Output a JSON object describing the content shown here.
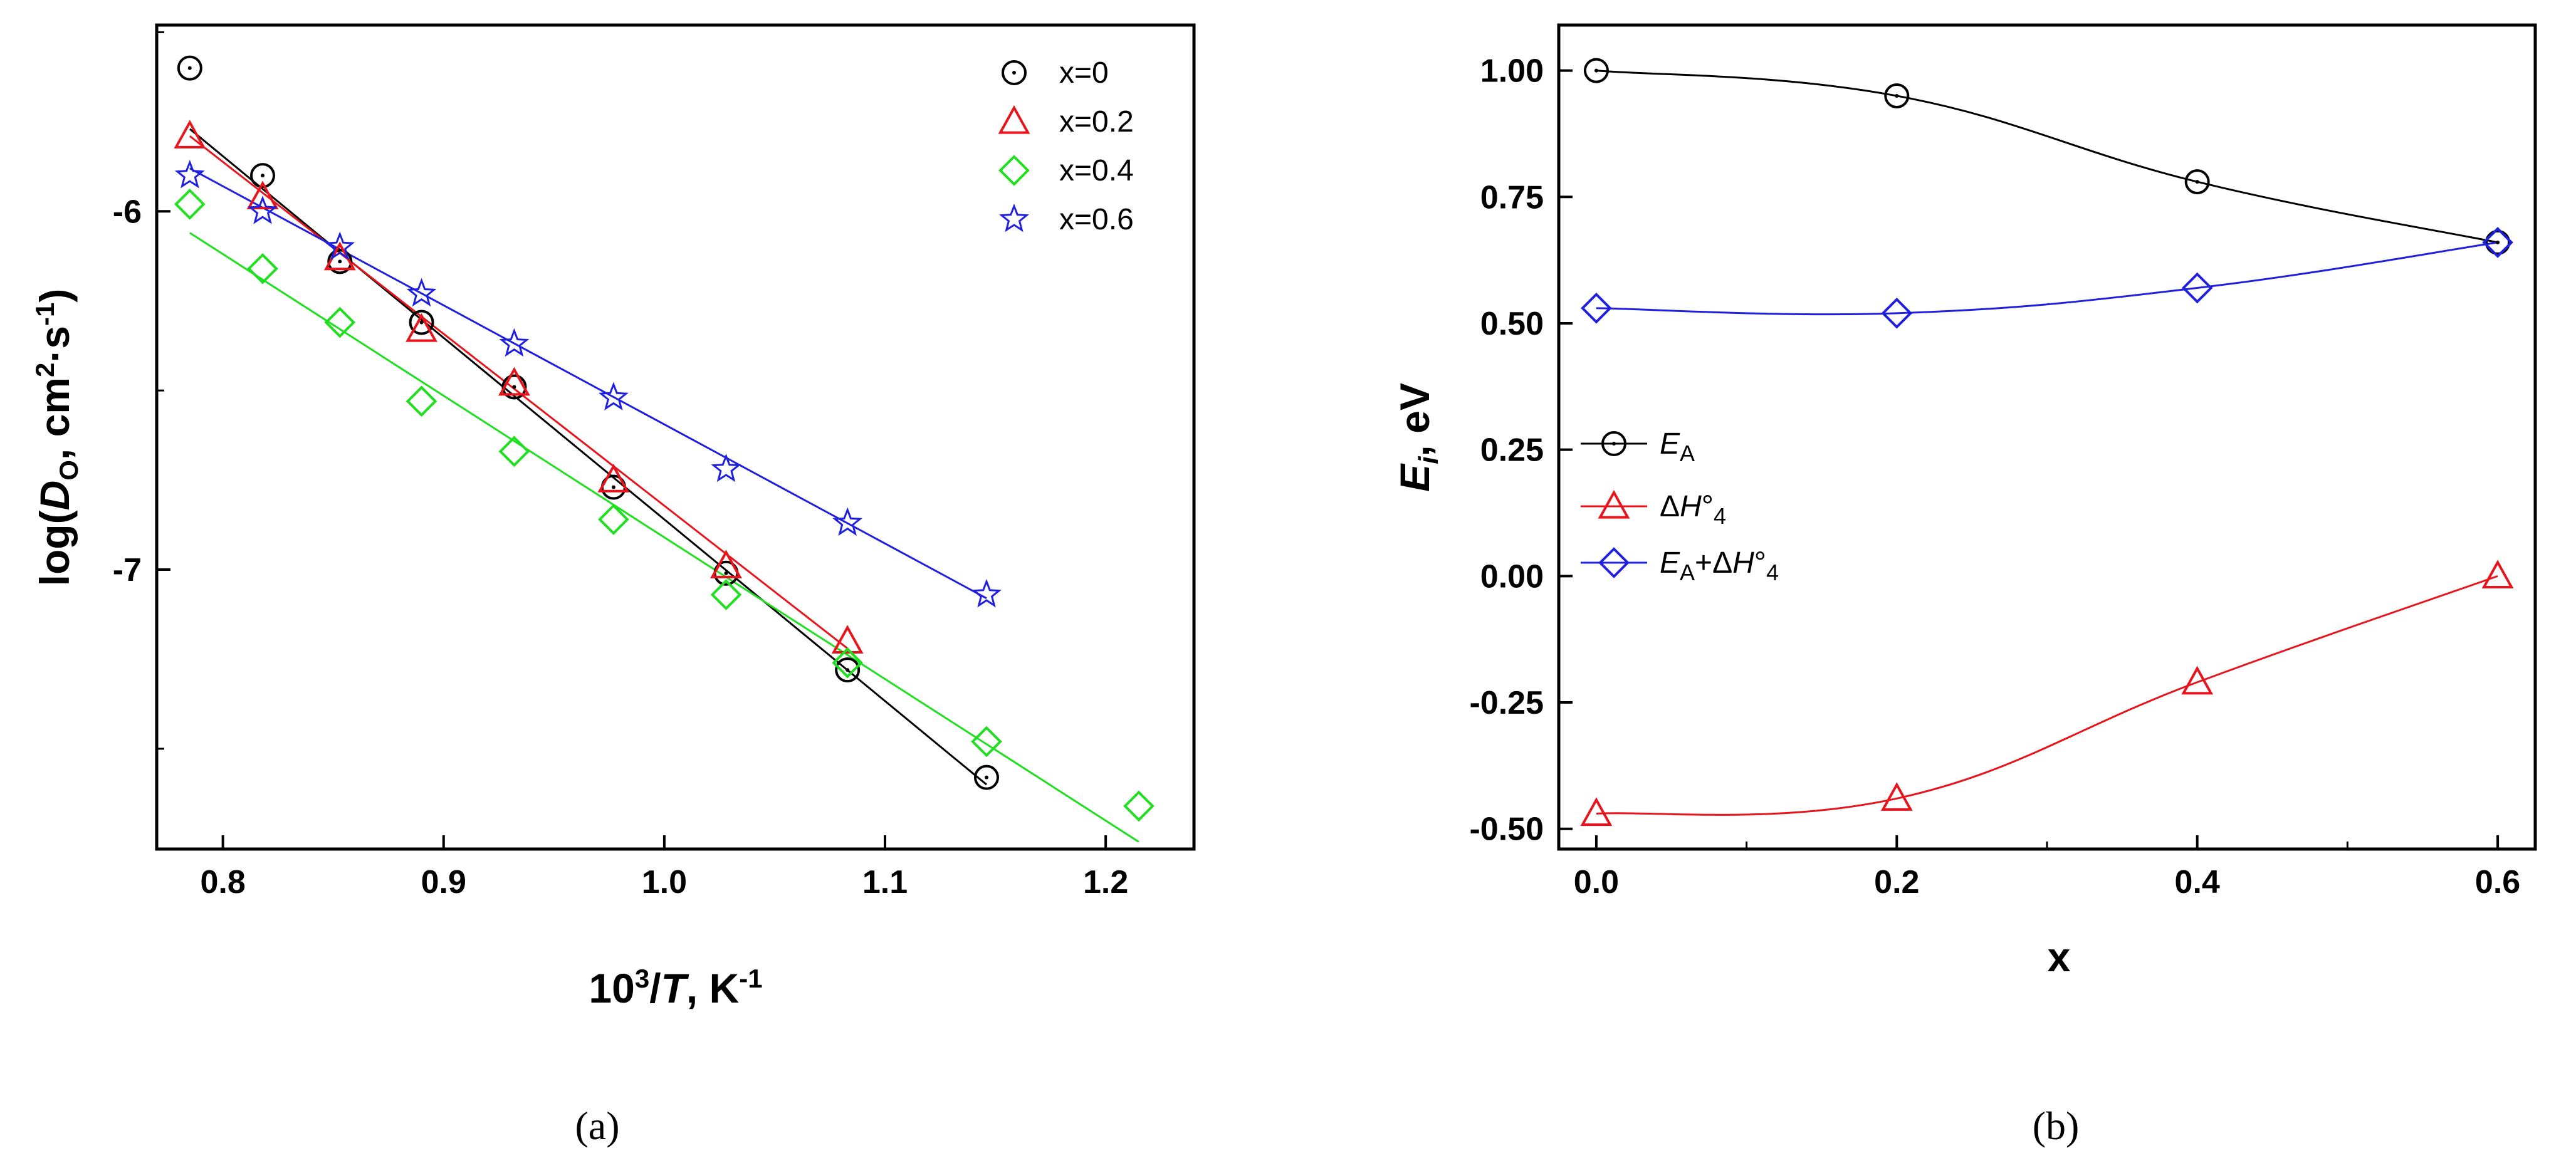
{
  "chart_data": [
    {
      "type": "scatter",
      "panel_label": "(a)",
      "xlabel": {
        "pre": "10",
        "sup": "3",
        "mid": "/",
        "italic": "T",
        "post": ", K",
        "sup2": "-1"
      },
      "ylabel": {
        "pre": "log(",
        "italic": "D",
        "sub": "O",
        "mid": ", cm",
        "sup": "2",
        "mid2": "·s",
        "sup2": "-1",
        "post": ")"
      },
      "xlim": [
        0.77,
        1.24
      ],
      "ylim": [
        -7.78,
        -5.48
      ],
      "x_ticks": [
        0.8,
        0.9,
        1.0,
        1.1,
        1.2
      ],
      "x_tick_labels": [
        "0.8",
        "0.9",
        "1.0",
        "1.1",
        "1.2"
      ],
      "y_ticks": [
        -6,
        -7
      ],
      "y_tick_labels": [
        "-6",
        "-7"
      ],
      "y_minor_ticks": [
        -5.5,
        -6.5,
        -7.5
      ],
      "legend_position": "top-right",
      "series": [
        {
          "name": "x=0",
          "marker": "circle",
          "color": "#000000",
          "x": [
            0.785,
            0.818,
            0.853,
            0.89,
            0.932,
            0.977,
            1.028,
            1.083,
            1.146
          ],
          "y": [
            -5.6,
            -5.9,
            -6.14,
            -6.31,
            -6.49,
            -6.77,
            -7.01,
            -7.28,
            -7.58
          ],
          "fit": [
            [
              0.785,
              -5.77
            ],
            [
              1.146,
              -7.6
            ]
          ]
        },
        {
          "name": "x=0.2",
          "marker": "triangle",
          "color": "#e8141b",
          "x": [
            0.785,
            0.818,
            0.853,
            0.89,
            0.932,
            0.977,
            1.028,
            1.083
          ],
          "y": [
            -5.79,
            -5.96,
            -6.13,
            -6.33,
            -6.48,
            -6.75,
            -6.99,
            -7.2
          ],
          "fit": [
            [
              0.785,
              -5.79
            ],
            [
              1.083,
              -7.22
            ]
          ]
        },
        {
          "name": "x=0.4",
          "marker": "diamond",
          "color": "#1fe01f",
          "x": [
            0.785,
            0.818,
            0.853,
            0.89,
            0.932,
            0.977,
            1.028,
            1.083,
            1.146,
            1.215
          ],
          "y": [
            -5.98,
            -6.16,
            -6.31,
            -6.53,
            -6.67,
            -6.86,
            -7.07,
            -7.26,
            -7.48,
            -7.66
          ],
          "fit": [
            [
              0.785,
              -6.06
            ],
            [
              1.215,
              -7.76
            ]
          ]
        },
        {
          "name": "x=0.6",
          "marker": "star",
          "color": "#1f1fe0",
          "x": [
            0.785,
            0.818,
            0.853,
            0.89,
            0.932,
            0.977,
            1.028,
            1.083,
            1.146
          ],
          "y": [
            -5.9,
            -6.0,
            -6.1,
            -6.23,
            -6.37,
            -6.52,
            -6.72,
            -6.87,
            -7.07
          ],
          "fit": [
            [
              0.785,
              -5.88
            ],
            [
              1.146,
              -7.08
            ]
          ]
        }
      ]
    },
    {
      "type": "line",
      "panel_label": "(b)",
      "xlabel": {
        "text": "x"
      },
      "ylabel": {
        "pre": "E",
        "sub": "i",
        "post": ", eV"
      },
      "xlim": [
        -0.025,
        0.625
      ],
      "ylim": [
        -0.54,
        1.09
      ],
      "x_ticks": [
        0,
        0.2,
        0.4,
        0.6
      ],
      "x_tick_labels": [
        "0.0",
        "0.2",
        "0.4",
        "0.6"
      ],
      "x_minor_ticks": [
        0.1,
        0.3,
        0.5
      ],
      "y_ticks": [
        1.0,
        0.75,
        0.5,
        0.25,
        0.0,
        -0.25,
        -0.5
      ],
      "y_tick_labels": [
        "1.00",
        "0.75",
        "0.50",
        "0.25",
        "0.00",
        "-0.25",
        "-0.50"
      ],
      "legend_position": "center-left",
      "series": [
        {
          "name": "E_A",
          "legend": {
            "italic": "E",
            "sub": "A"
          },
          "marker": "circle",
          "color": "#000000",
          "x": [
            0.0,
            0.2,
            0.4,
            0.6
          ],
          "y": [
            1.0,
            0.95,
            0.78,
            0.66
          ]
        },
        {
          "name": "ΔH°_4",
          "legend": {
            "pre": "Δ",
            "italic": "H",
            "post": "°",
            "sub": "4"
          },
          "marker": "triangle",
          "color": "#e8141b",
          "x": [
            0.0,
            0.2,
            0.4,
            0.6
          ],
          "y": [
            -0.47,
            -0.44,
            -0.21,
            0.0
          ]
        },
        {
          "name": "E_A+ΔH°_4",
          "legend": {
            "italic": "E",
            "sub": "A",
            "mid": "+Δ",
            "italic2": "H",
            "post": "°",
            "sub2": "4"
          },
          "marker": "diamond",
          "color": "#1f1fe0",
          "x": [
            0.0,
            0.2,
            0.4,
            0.6
          ],
          "y": [
            0.53,
            0.52,
            0.57,
            0.66
          ]
        }
      ]
    }
  ]
}
